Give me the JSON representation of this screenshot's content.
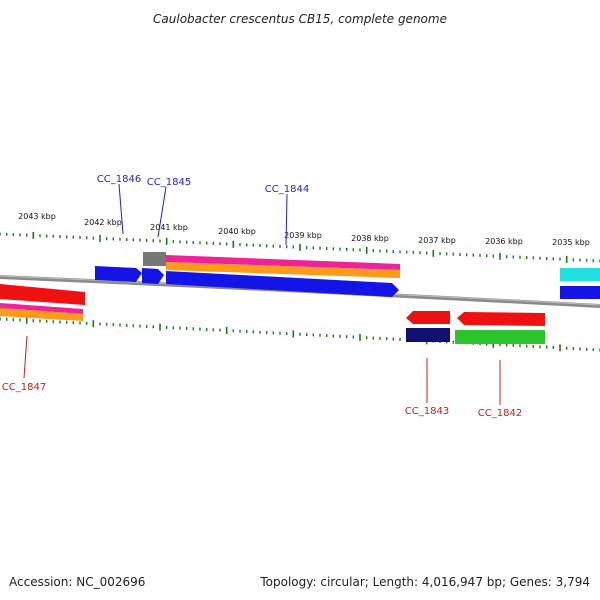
{
  "title": "Caulobacter crescentus CB15, complete genome",
  "footer": {
    "accession": "Accession: NC_002696",
    "summary": "Topology: circular; Length: 4,016,947 bp; Genes: 3,794"
  },
  "scale_labels": [
    "2043 kbp",
    "2042 kbp",
    "2041 kbp",
    "2040 kbp",
    "2039 kbp",
    "2038 kbp",
    "2037 kbp",
    "2036 kbp",
    "2035 kbp"
  ],
  "forward_labels": [
    "CC_1846",
    "CC_1845",
    "CC_1844"
  ],
  "reverse_labels": [
    "CC_1847",
    "CC_1843",
    "CC_1842"
  ],
  "colors": {
    "forward_label": "#1f1fd0",
    "reverse_label": "#cc1a1a",
    "backbone": "#8a8a8a",
    "ticks": "#1a7a1a",
    "cds_blue": "#1414e6",
    "cds_red": "#ee1111",
    "cds_gray": "#777777",
    "cds_navy": "#101070",
    "cds_green": "#2bc42b",
    "cds_cyan": "#22e0e0",
    "band_magenta": "#ee2299",
    "band_orange": "#ff9a1a"
  }
}
